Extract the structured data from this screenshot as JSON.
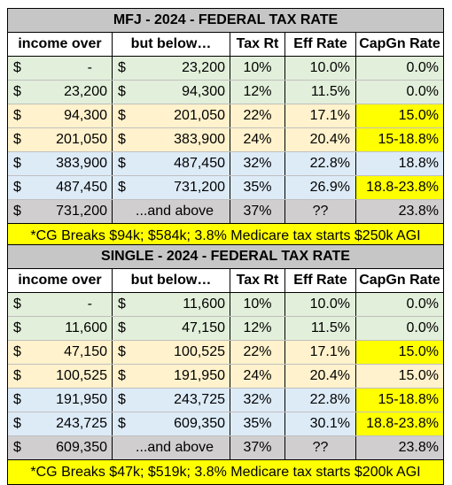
{
  "mfj": {
    "title": "MFJ - 2024 - FEDERAL TAX RATE",
    "headers": [
      "income over",
      "but below…",
      "Tax Rt",
      "Eff Rate",
      "CapGn Rate"
    ],
    "rows": [
      {
        "d1": "$",
        "over": "-",
        "d2": "$",
        "below": "23,200",
        "rate": "10%",
        "eff": "10.0%",
        "cg": "0.0%"
      },
      {
        "d1": "$",
        "over": "23,200",
        "d2": "$",
        "below": "94,300",
        "rate": "12%",
        "eff": "11.5%",
        "cg": "0.0%"
      },
      {
        "d1": "$",
        "over": "94,300",
        "d2": "$",
        "below": "201,050",
        "rate": "22%",
        "eff": "17.1%",
        "cg": "15.0%"
      },
      {
        "d1": "$",
        "over": "201,050",
        "d2": "$",
        "below": "383,900",
        "rate": "24%",
        "eff": "20.4%",
        "cg": "15-18.8%"
      },
      {
        "d1": "$",
        "over": "383,900",
        "d2": "$",
        "below": "487,450",
        "rate": "32%",
        "eff": "22.8%",
        "cg": "18.8%"
      },
      {
        "d1": "$",
        "over": "487,450",
        "d2": "$",
        "below": "731,200",
        "rate": "35%",
        "eff": "26.9%",
        "cg": "18.8-23.8%"
      },
      {
        "d1": "$",
        "over": "731,200",
        "d2": "",
        "below": "...and above",
        "rate": "37%",
        "eff": "??",
        "cg": "23.8%"
      }
    ],
    "note": "*CG Breaks $94k; $584k; 3.8% Medicare tax starts $250k AGI"
  },
  "single": {
    "title": "SINGLE - 2024 - FEDERAL TAX RATE",
    "headers": [
      "income over",
      "but below…",
      "Tax Rt",
      "Eff Rate",
      "CapGn Rate"
    ],
    "rows": [
      {
        "d1": "$",
        "over": "-",
        "d2": "$",
        "below": "11,600",
        "rate": "10%",
        "eff": "10.0%",
        "cg": "0.0%"
      },
      {
        "d1": "$",
        "over": "11,600",
        "d2": "$",
        "below": "47,150",
        "rate": "12%",
        "eff": "11.5%",
        "cg": "0.0%"
      },
      {
        "d1": "$",
        "over": "47,150",
        "d2": "$",
        "below": "100,525",
        "rate": "22%",
        "eff": "17.1%",
        "cg": "15.0%"
      },
      {
        "d1": "$",
        "over": "100,525",
        "d2": "$",
        "below": "191,950",
        "rate": "24%",
        "eff": "20.4%",
        "cg": "15.0%"
      },
      {
        "d1": "$",
        "over": "191,950",
        "d2": "$",
        "below": "243,725",
        "rate": "32%",
        "eff": "22.8%",
        "cg": "15-18.8%"
      },
      {
        "d1": "$",
        "over": "243,725",
        "d2": "$",
        "below": "609,350",
        "rate": "35%",
        "eff": "30.1%",
        "cg": "18.8-23.8%"
      },
      {
        "d1": "$",
        "over": "609,350",
        "d2": "",
        "below": "...and above",
        "rate": "37%",
        "eff": "??",
        "cg": "23.8%"
      }
    ],
    "note": "*CG Breaks $47k; $519k; 3.8% Medicare tax starts $200k AGI"
  },
  "colors": {
    "green": "#e2efda",
    "orange": "#fff2cc",
    "blue": "#ddebf7",
    "gray": "#d0cece",
    "yellow": "#ffff00",
    "title_bg": "#c6c6c6"
  }
}
